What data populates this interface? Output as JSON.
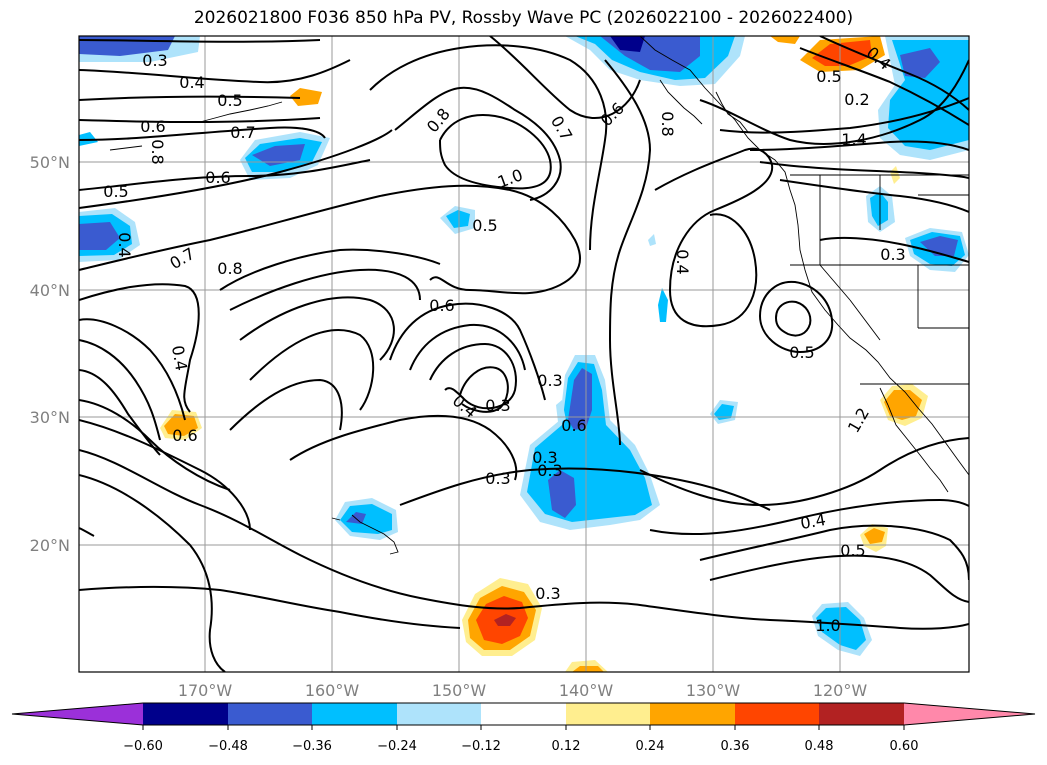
{
  "title": "2026021800 F036 850 hPa PV, Rossby Wave PC (2026022100 - 2026022400)",
  "lat_labels": [
    "50°N",
    "40°N",
    "30°N",
    "20°N"
  ],
  "lon_labels": [
    "170°W",
    "160°W",
    "150°W",
    "140°W",
    "130°W",
    "120°W"
  ],
  "contour_labels": [
    "0.3",
    "0.4",
    "0.5",
    "0.6",
    "0.7",
    "0.8",
    "0.5",
    "0.6",
    "0.4",
    "0.7",
    "0.8",
    "0.4",
    "0.8",
    "1.0",
    "0.7",
    "0.6",
    "0.8",
    "0.5",
    "0.6",
    "0.4",
    "0.3",
    "0.6",
    "0.4",
    "0.3",
    "0.3",
    "0.4",
    "0.5",
    "0.3",
    "0.5",
    "0.3",
    "0.4",
    "0.5",
    "0.2",
    "1.4",
    "1.2",
    "1.0",
    "0.6",
    "0.3",
    "0.3"
  ],
  "colorbar": {
    "ticks": [
      "−0.60",
      "−0.48",
      "−0.36",
      "−0.24",
      "−0.12",
      "0.12",
      "0.24",
      "0.36",
      "0.48",
      "0.60"
    ],
    "colors": {
      "under": "#9b30d9",
      "b1": "#00008b",
      "b2": "#3a5bd0",
      "b3": "#00bfff",
      "b4": "#aee3fb",
      "b5": "#ffffff",
      "b6": "#ffee8f",
      "b7": "#ffa500",
      "b8": "#ff4500",
      "b9": "#b22222",
      "over": "#ff88aa"
    }
  }
}
